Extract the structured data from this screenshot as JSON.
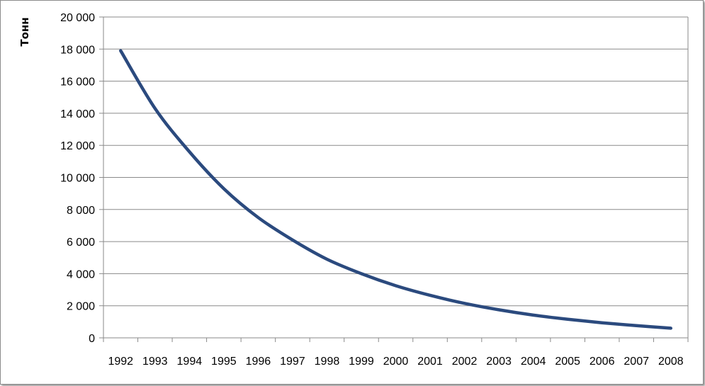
{
  "chart_data": {
    "type": "line",
    "title": "",
    "xlabel": "",
    "ylabel": "Тонн",
    "categories": [
      "1992",
      "1993",
      "1994",
      "1995",
      "1996",
      "1997",
      "1998",
      "1999",
      "2000",
      "2001",
      "2002",
      "2003",
      "2004",
      "2005",
      "2006",
      "2007",
      "2008"
    ],
    "y_ticks": [
      "0",
      "2 000",
      "4 000",
      "6 000",
      "8 000",
      "10 000",
      "12 000",
      "14 000",
      "16 000",
      "18 000",
      "20 000"
    ],
    "ylim": [
      0,
      20000
    ],
    "grid": true,
    "legend": "none",
    "series": [
      {
        "color": "#2b4a7e",
        "values": [
          17900,
          14300,
          11600,
          9300,
          7500,
          6100,
          4900,
          4000,
          3250,
          2650,
          2150,
          1750,
          1420,
          1160,
          940,
          760,
          600
        ]
      }
    ]
  }
}
